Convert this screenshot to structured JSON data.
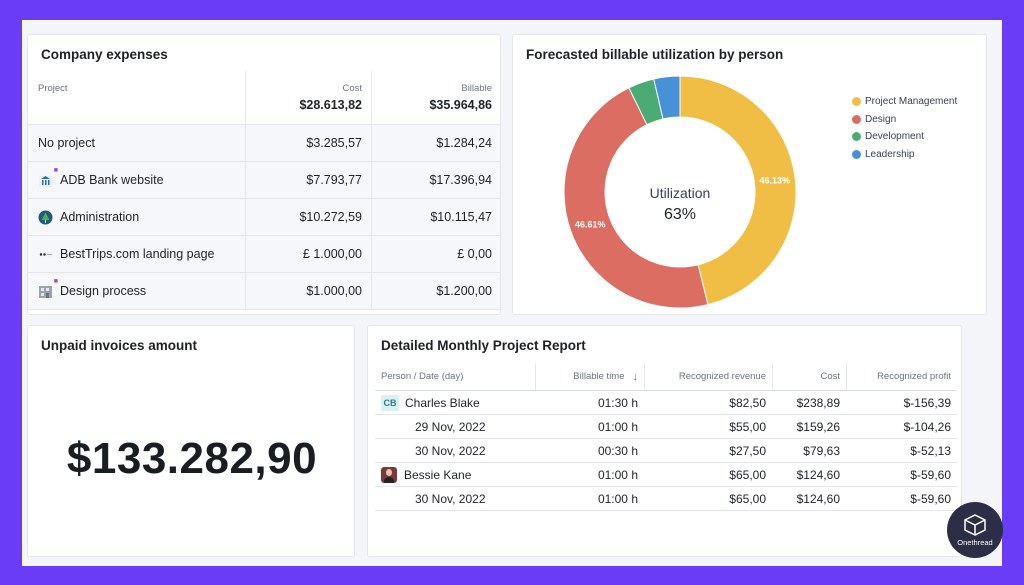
{
  "colors": {
    "frame": "#6b3cf5",
    "project_management": "#f1be45",
    "design": "#dc6d62",
    "development": "#4bab74",
    "leadership": "#4791d6"
  },
  "company_expenses": {
    "title": "Company expenses",
    "header": {
      "project": "Project",
      "cost": "Cost",
      "cost_total": "$28.613,82",
      "billable": "Billable",
      "billable_total": "$35.964,86"
    },
    "rows": [
      {
        "project": "No project",
        "cost": "$3.285,57",
        "billable": "$1.284,24",
        "icon": "none"
      },
      {
        "project": "ADB Bank website",
        "cost": "$7.793,77",
        "billable": "$17.396,94",
        "icon": "bank-logo-icon"
      },
      {
        "project": "Administration",
        "cost": "$10.272,59",
        "billable": "$10.115,47",
        "icon": "tree-logo-icon"
      },
      {
        "project": "BestTrips.com landing page",
        "cost": "£ 1.000,00",
        "billable": "£ 0,00",
        "icon": "travel-logo-icon"
      },
      {
        "project": "Design process",
        "cost": "$1.000,00",
        "billable": "$1.200,00",
        "icon": "building-logo-icon"
      }
    ]
  },
  "forecast": {
    "title": "Forecasted billable utilization by person",
    "center_label": "Utilization",
    "center_value": "63%",
    "segments": [
      {
        "name": "Project Management",
        "pct": 46.13,
        "label": "46.13%"
      },
      {
        "name": "Design",
        "pct": 46.61,
        "label": "46.61%"
      },
      {
        "name": "Development",
        "pct": 3.63
      },
      {
        "name": "Leadership",
        "pct": 3.63
      }
    ]
  },
  "unpaid": {
    "title": "Unpaid invoices amount",
    "amount": "$133.282,90"
  },
  "report": {
    "title": "Detailed Monthly Project Report",
    "columns": [
      "Person / Date (day)",
      "Billable time",
      "Recognized revenue",
      "Cost",
      "Recognized profit"
    ],
    "rows": [
      {
        "person": "Charles Blake",
        "initials": "CB",
        "time": "01:30 h",
        "revenue": "$82,50",
        "cost": "$238,89",
        "profit": "$-156,39"
      },
      {
        "date": "29 Nov, 2022",
        "time": "01:00 h",
        "revenue": "$55,00",
        "cost": "$159,26",
        "profit": "$-104,26"
      },
      {
        "date": "30 Nov, 2022",
        "time": "00:30 h",
        "revenue": "$27,50",
        "cost": "$79,63",
        "profit": "$-52,13"
      },
      {
        "person": "Bessie Kane",
        "time": "01:00 h",
        "revenue": "$65,00",
        "cost": "$124,60",
        "profit": "$-59,60"
      },
      {
        "date": "30 Nov, 2022",
        "time": "01:00 h",
        "revenue": "$65,00",
        "cost": "$124,60",
        "profit": "$-59,60"
      }
    ]
  },
  "badge": {
    "text": "Onethread"
  }
}
